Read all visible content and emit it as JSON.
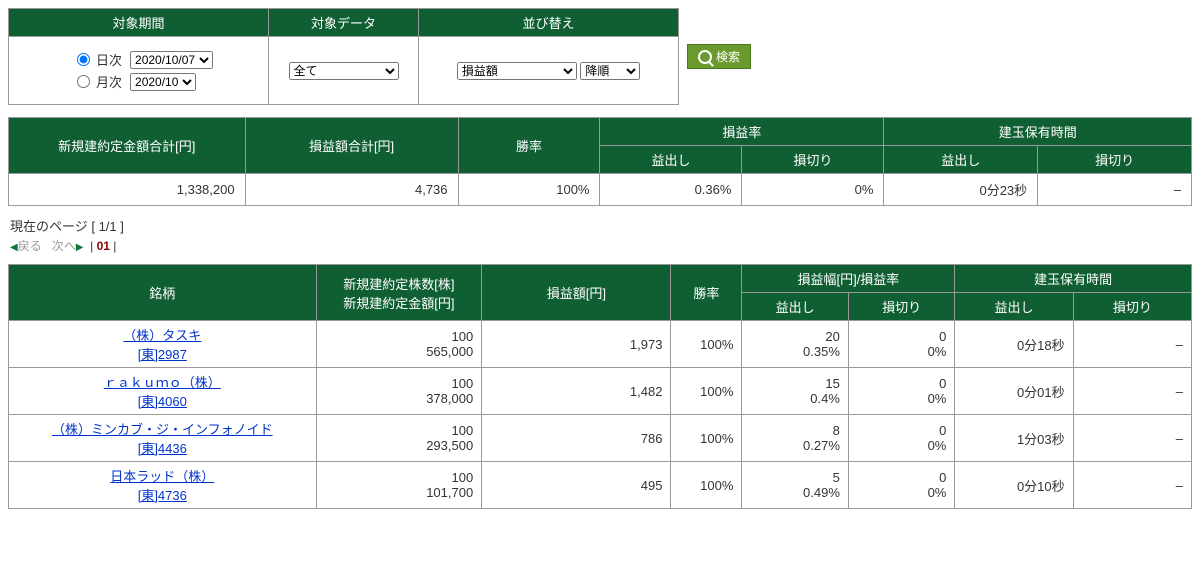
{
  "filters": {
    "period_header": "対象期間",
    "data_header": "対象データ",
    "sort_header": "並び替え",
    "daily_label": "日次",
    "monthly_label": "月次",
    "daily_date": "2020/10/07",
    "monthly_date": "2020/10",
    "data_select": "全て",
    "sort_field": "損益額",
    "sort_order": "降順",
    "search_label": "検索"
  },
  "summary": {
    "headers": {
      "contract_total": "新規建約定金額合計[円]",
      "profit_total": "損益額合計[円]",
      "winrate": "勝率",
      "profit_rate": "損益率",
      "profit": "益出し",
      "loss": "損切り",
      "holding": "建玉保有時間"
    },
    "contract_total": "1,338,200",
    "profit_total": "4,736",
    "winrate": "100%",
    "profit_pct": "0.36%",
    "loss_pct": "0%",
    "profit_time": "0分23秒",
    "loss_time": "–"
  },
  "pagination": {
    "label_prefix": "現在のページ [ ",
    "page": "1/1",
    "label_suffix": " ]",
    "back": "戻る",
    "next": "次へ",
    "sep": "|",
    "num": "01"
  },
  "detail": {
    "headers": {
      "name": "銘柄",
      "shares_amount_line1": "新規建約定株数[株]",
      "shares_amount_line2": "新規建約定金額[円]",
      "profit": "損益額[円]",
      "winrate": "勝率",
      "width_rate": "損益幅[円]/損益率",
      "take": "益出し",
      "cut": "損切り",
      "holding": "建玉保有時間"
    },
    "rows": [
      {
        "name": "（株）タスキ",
        "code_label": "[東]2987",
        "shares": "100",
        "amount": "565,000",
        "profit": "1,973",
        "winrate": "100%",
        "take_width": "20",
        "take_rate": "0.35%",
        "cut_width": "0",
        "cut_rate": "0%",
        "take_time": "0分18秒",
        "cut_time": "–"
      },
      {
        "name": "ｒａｋｕｍｏ（株）",
        "code_label": "[東]4060",
        "shares": "100",
        "amount": "378,000",
        "profit": "1,482",
        "winrate": "100%",
        "take_width": "15",
        "take_rate": "0.4%",
        "cut_width": "0",
        "cut_rate": "0%",
        "take_time": "0分01秒",
        "cut_time": "–"
      },
      {
        "name": "（株）ミンカブ・ジ・インフォノイド",
        "code_label": "[東]4436",
        "shares": "100",
        "amount": "293,500",
        "profit": "786",
        "winrate": "100%",
        "take_width": "8",
        "take_rate": "0.27%",
        "cut_width": "0",
        "cut_rate": "0%",
        "take_time": "1分03秒",
        "cut_time": "–"
      },
      {
        "name": "日本ラッド（株）",
        "code_label": "[東]4736",
        "shares": "100",
        "amount": "101,700",
        "profit": "495",
        "winrate": "100%",
        "take_width": "5",
        "take_rate": "0.49%",
        "cut_width": "0",
        "cut_rate": "0%",
        "take_time": "0分10秒",
        "cut_time": "–"
      }
    ]
  },
  "colors": {
    "header_bg": "#0f5f33",
    "link": "#0033cc",
    "search_bg": "#6a9a2d"
  }
}
